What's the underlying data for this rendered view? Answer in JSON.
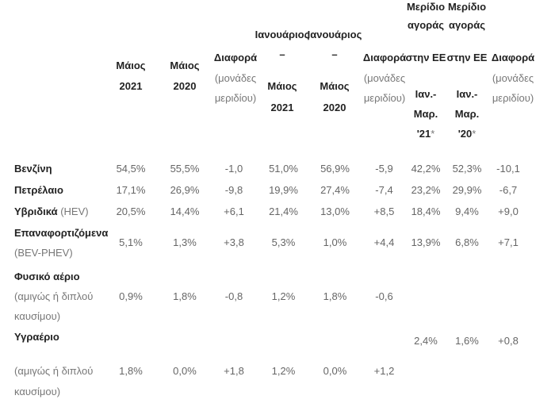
{
  "headers": {
    "may2021": [
      "Μάιος",
      "2021"
    ],
    "may2020": [
      "Μάιος",
      "2020"
    ],
    "diff1": {
      "title": "Διαφορά",
      "sub": [
        "(μονάδες",
        "μεριδίου)"
      ]
    },
    "janmay2021": [
      "Ιανουάριος",
      "–",
      "Μάιος",
      "2021"
    ],
    "janmay2020": [
      "Ιανουάριος",
      "–",
      "Μάιος",
      "2020"
    ],
    "diff2": {
      "title": "Διαφορά",
      "sub": [
        "(μονάδες",
        "μεριδίου)"
      ]
    },
    "share21": {
      "lines": [
        "Μερίδιο",
        "αγοράς",
        "στην ΕΕ",
        "Ιαν.-",
        "Μαρ."
      ],
      "year": "'21",
      "star": "*"
    },
    "share20": {
      "lines": [
        "Μερίδιο",
        "αγοράς",
        "στην ΕΕ",
        "Ιαν.-",
        "Μαρ."
      ],
      "year": "'20",
      "star": "*"
    },
    "diff3": {
      "title": "Διαφορά",
      "sub": [
        "(μονάδες",
        "μεριδίου)"
      ]
    }
  },
  "rows": [
    {
      "label": "Βενζίνη",
      "values": [
        "54,5%",
        "55,5%",
        "-1,0",
        "51,0%",
        "56,9%",
        "-5,9",
        "42,2%",
        "52,3%",
        "-10,1"
      ]
    },
    {
      "label": "Πετρέλαιο",
      "values": [
        "17,1%",
        "26,9%",
        "-9,8",
        "19,9%",
        "27,4%",
        "-7,4",
        "23,2%",
        "29,9%",
        "-6,7"
      ]
    },
    {
      "label": "Υβριδικά",
      "suffix": "(HEV)",
      "values": [
        "20,5%",
        "14,4%",
        "+6,1",
        "21,4%",
        "13,0%",
        "+8,5",
        "18,4%",
        "9,4%",
        "+9,0"
      ]
    },
    {
      "label": "Επαναφορτιζόμενα",
      "sub": "(BEV-PHEV)",
      "values": [
        "5,1%",
        "1,3%",
        "+3,8",
        "5,3%",
        "1,0%",
        "+4,4",
        "13,9%",
        "6,8%",
        "+7,1"
      ]
    },
    {
      "label": "Φυσικό αέριο",
      "sub": [
        "(αμιγώς ή διπλού",
        "καυσίμου)"
      ],
      "values": [
        "0,9%",
        "1,8%",
        "-0,8",
        "1,2%",
        "1,8%",
        "-0,6"
      ]
    },
    {
      "label": "Υγραέριο",
      "values": [
        "2,4%",
        "1,6%",
        "+0,8"
      ]
    },
    {
      "sub": [
        "(αμιγώς ή διπλού",
        "καυσίμου)"
      ],
      "values": [
        "1,8%",
        "0,0%",
        "+1,8",
        "1,2%",
        "0,0%",
        "+1,2"
      ]
    }
  ]
}
